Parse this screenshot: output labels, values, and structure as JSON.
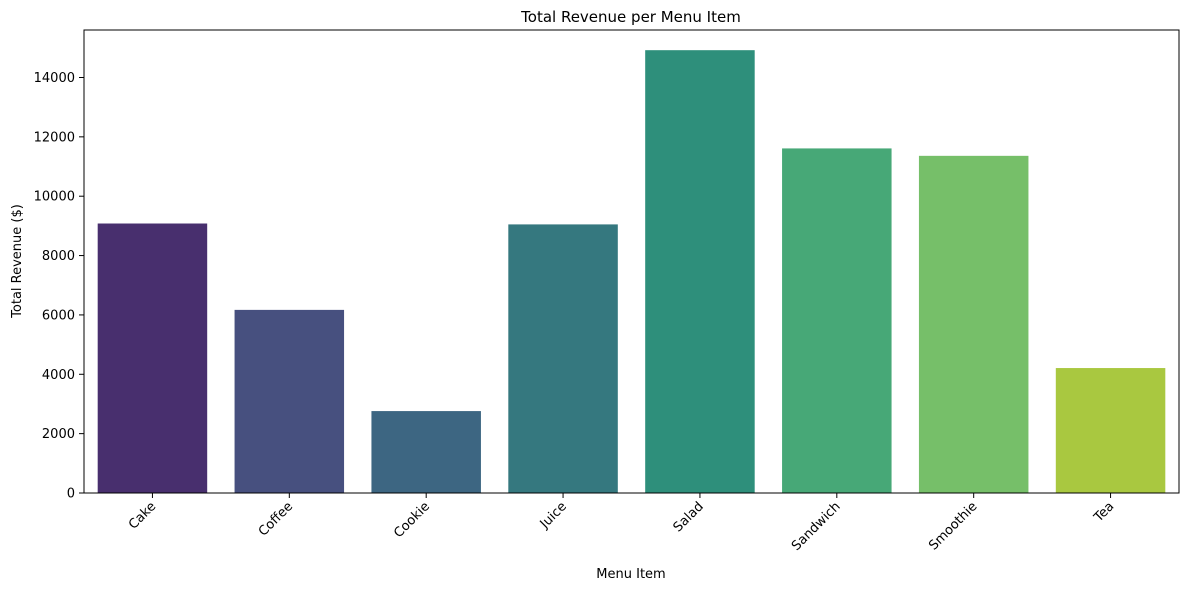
{
  "chart_data": {
    "type": "bar",
    "title": "Total Revenue per Menu Item",
    "xlabel": "Menu Item",
    "ylabel": "Total Revenue ($)",
    "categories": [
      "Cake",
      "Coffee",
      "Cookie",
      "Juice",
      "Salad",
      "Sandwich",
      "Smoothie",
      "Tea"
    ],
    "values": [
      9080,
      6170,
      2760,
      9050,
      14920,
      11610,
      11360,
      4210
    ],
    "colors": [
      "#482f6e",
      "#47507f",
      "#3d6682",
      "#35787f",
      "#2e8f7b",
      "#47a877",
      "#76bf69",
      "#a9c840"
    ],
    "ylim": [
      0,
      15600
    ],
    "yticks": [
      0,
      2000,
      4000,
      6000,
      8000,
      10000,
      12000,
      14000
    ],
    "xtick_rotation": 45,
    "grid": false,
    "legend": "none"
  }
}
